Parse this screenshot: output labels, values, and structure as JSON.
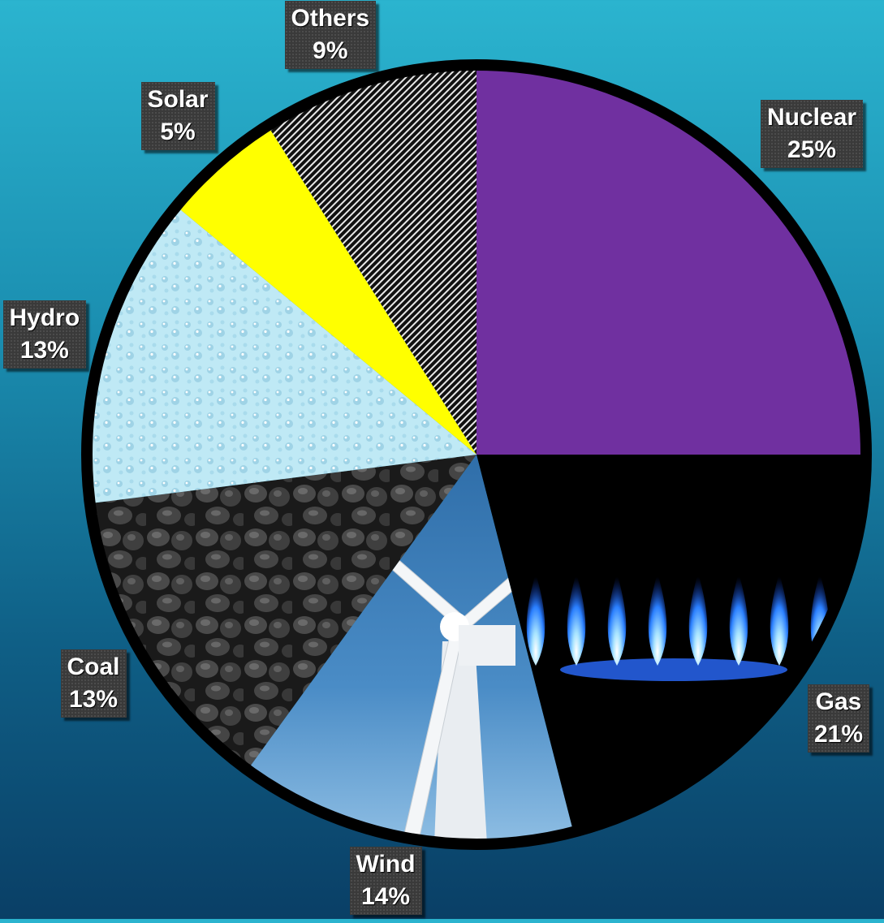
{
  "chart_data": {
    "type": "pie",
    "title": "",
    "slices": [
      {
        "name": "Nuclear",
        "value": 25,
        "label": "25%",
        "fill": "#7030a0"
      },
      {
        "name": "Gas",
        "value": 21,
        "label": "21%",
        "fill": "#000000"
      },
      {
        "name": "Wind",
        "value": 14,
        "label": "14%",
        "fill": "#3a78b3"
      },
      {
        "name": "Coal",
        "value": 13,
        "label": "13%",
        "fill": "#2d2d2d"
      },
      {
        "name": "Hydro",
        "value": 13,
        "label": "13%",
        "fill": "#bfe9f5"
      },
      {
        "name": "Solar",
        "value": 5,
        "label": "5%",
        "fill": "#ffff00"
      },
      {
        "name": "Others",
        "value": 9,
        "label": "9%",
        "fill": "#111111"
      }
    ],
    "start_angle_deg": 0,
    "direction": "clockwise",
    "legend": "none",
    "data_labels": "outside, name and percent"
  },
  "colors": {
    "background_top": "#2bb4cf",
    "background_bottom": "#0a3f66",
    "outline": "#000000",
    "label_box": "#3a3a3a",
    "label_text": "#ffffff"
  }
}
